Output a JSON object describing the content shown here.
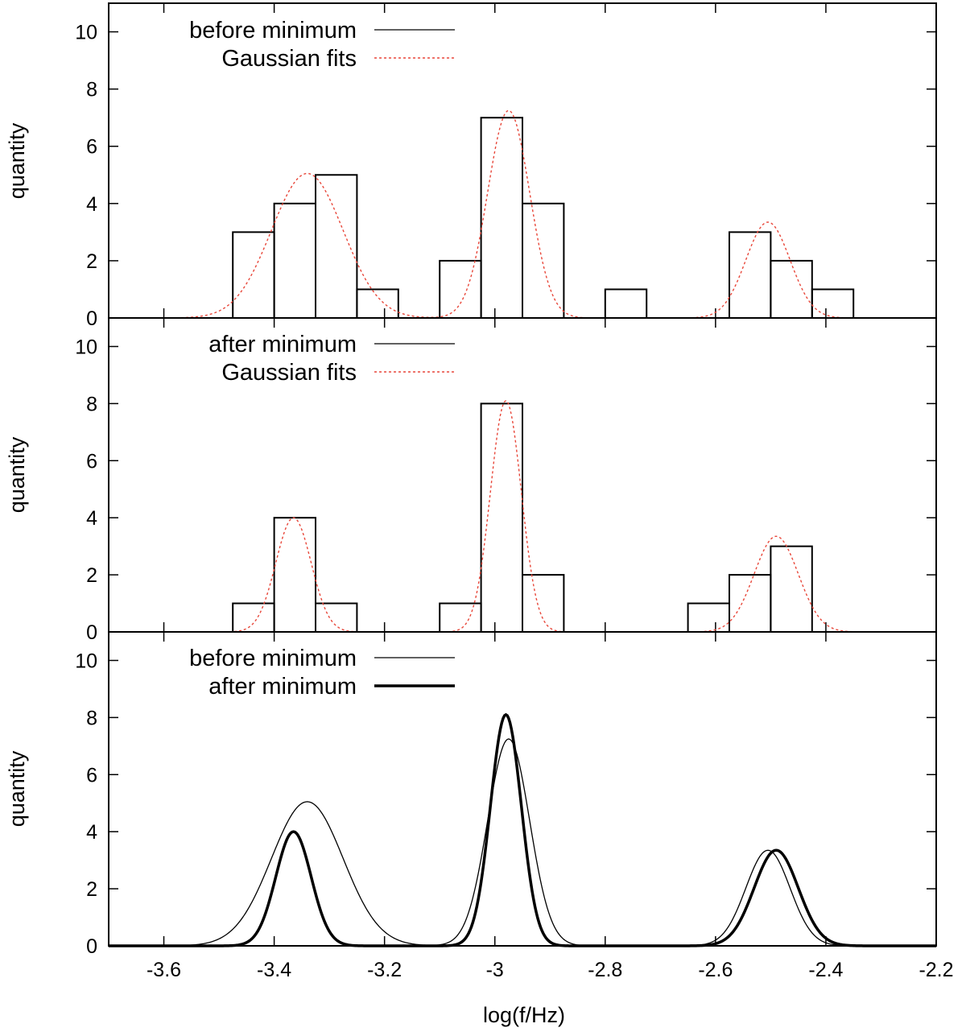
{
  "chart_data": [
    {
      "type": "line",
      "panel": "top",
      "title": "",
      "xlabel": "",
      "ylabel": "quantity",
      "xlim": [
        -3.7,
        -2.2
      ],
      "ylim": [
        0,
        11
      ],
      "yticks": [
        0,
        2,
        4,
        6,
        8,
        10
      ],
      "legend_position": "top-left",
      "series": [
        {
          "name": "before minimum",
          "kind": "histogram",
          "color": "#000000",
          "bin_width": 0.075,
          "bins": [
            {
              "left": -3.475,
              "value": 3
            },
            {
              "left": -3.4,
              "value": 4
            },
            {
              "left": -3.325,
              "value": 5
            },
            {
              "left": -3.25,
              "value": 1
            },
            {
              "left": -3.1,
              "value": 2
            },
            {
              "left": -3.025,
              "value": 7
            },
            {
              "left": -2.95,
              "value": 4
            },
            {
              "left": -2.8,
              "value": 1
            },
            {
              "left": -2.575,
              "value": 3
            },
            {
              "left": -2.5,
              "value": 2
            },
            {
              "left": -2.425,
              "value": 1
            }
          ]
        },
        {
          "name": "Gaussian fits",
          "kind": "gaussian-sum",
          "color": "#e8473a",
          "dashed": true,
          "components": [
            {
              "amplitude": 5.05,
              "center": -3.34,
              "sigma": 0.065
            },
            {
              "amplitude": 7.25,
              "center": -2.975,
              "sigma": 0.038
            },
            {
              "amplitude": 3.35,
              "center": -2.505,
              "sigma": 0.04
            }
          ]
        }
      ]
    },
    {
      "type": "line",
      "panel": "middle",
      "title": "",
      "xlabel": "",
      "ylabel": "quantity",
      "xlim": [
        -3.7,
        -2.2
      ],
      "ylim": [
        0,
        11
      ],
      "yticks": [
        0,
        2,
        4,
        6,
        8,
        10
      ],
      "legend_position": "top-left",
      "series": [
        {
          "name": "after minimum",
          "kind": "histogram",
          "color": "#000000",
          "bin_width": 0.075,
          "bins": [
            {
              "left": -3.475,
              "value": 1
            },
            {
              "left": -3.4,
              "value": 4
            },
            {
              "left": -3.325,
              "value": 1
            },
            {
              "left": -3.1,
              "value": 1
            },
            {
              "left": -3.025,
              "value": 8
            },
            {
              "left": -2.95,
              "value": 2
            },
            {
              "left": -2.65,
              "value": 1
            },
            {
              "left": -2.575,
              "value": 2
            },
            {
              "left": -2.5,
              "value": 3
            }
          ]
        },
        {
          "name": "Gaussian fits",
          "kind": "gaussian-sum",
          "color": "#e8473a",
          "dashed": true,
          "components": [
            {
              "amplitude": 4.0,
              "center": -3.365,
              "sigma": 0.032
            },
            {
              "amplitude": 8.1,
              "center": -2.98,
              "sigma": 0.028
            },
            {
              "amplitude": 3.35,
              "center": -2.49,
              "sigma": 0.04
            }
          ]
        }
      ]
    },
    {
      "type": "line",
      "panel": "bottom",
      "title": "",
      "xlabel": "log(f/Hz)",
      "ylabel": "quantity",
      "xlim": [
        -3.7,
        -2.2
      ],
      "ylim": [
        0,
        11
      ],
      "yticks": [
        0,
        2,
        4,
        6,
        8,
        10
      ],
      "xticks": [
        -3.6,
        -3.4,
        -3.2,
        -3,
        -2.8,
        -2.6,
        -2.4,
        -2.2
      ],
      "xtick_labels": [
        "-3.6",
        "-3.4",
        "-3.2",
        "-3",
        "-2.8",
        "-2.6",
        "-2.4",
        "-2.2"
      ],
      "legend_position": "top-left",
      "series": [
        {
          "name": "before minimum",
          "kind": "gaussian-sum",
          "color": "#000000",
          "weight": "thin",
          "components": [
            {
              "amplitude": 5.05,
              "center": -3.34,
              "sigma": 0.065
            },
            {
              "amplitude": 7.25,
              "center": -2.975,
              "sigma": 0.038
            },
            {
              "amplitude": 3.35,
              "center": -2.505,
              "sigma": 0.04
            }
          ]
        },
        {
          "name": "after minimum",
          "kind": "gaussian-sum",
          "color": "#000000",
          "weight": "thick",
          "components": [
            {
              "amplitude": 4.0,
              "center": -3.365,
              "sigma": 0.032
            },
            {
              "amplitude": 8.1,
              "center": -2.98,
              "sigma": 0.028
            },
            {
              "amplitude": 3.35,
              "center": -2.49,
              "sigma": 0.04
            }
          ]
        }
      ]
    }
  ]
}
